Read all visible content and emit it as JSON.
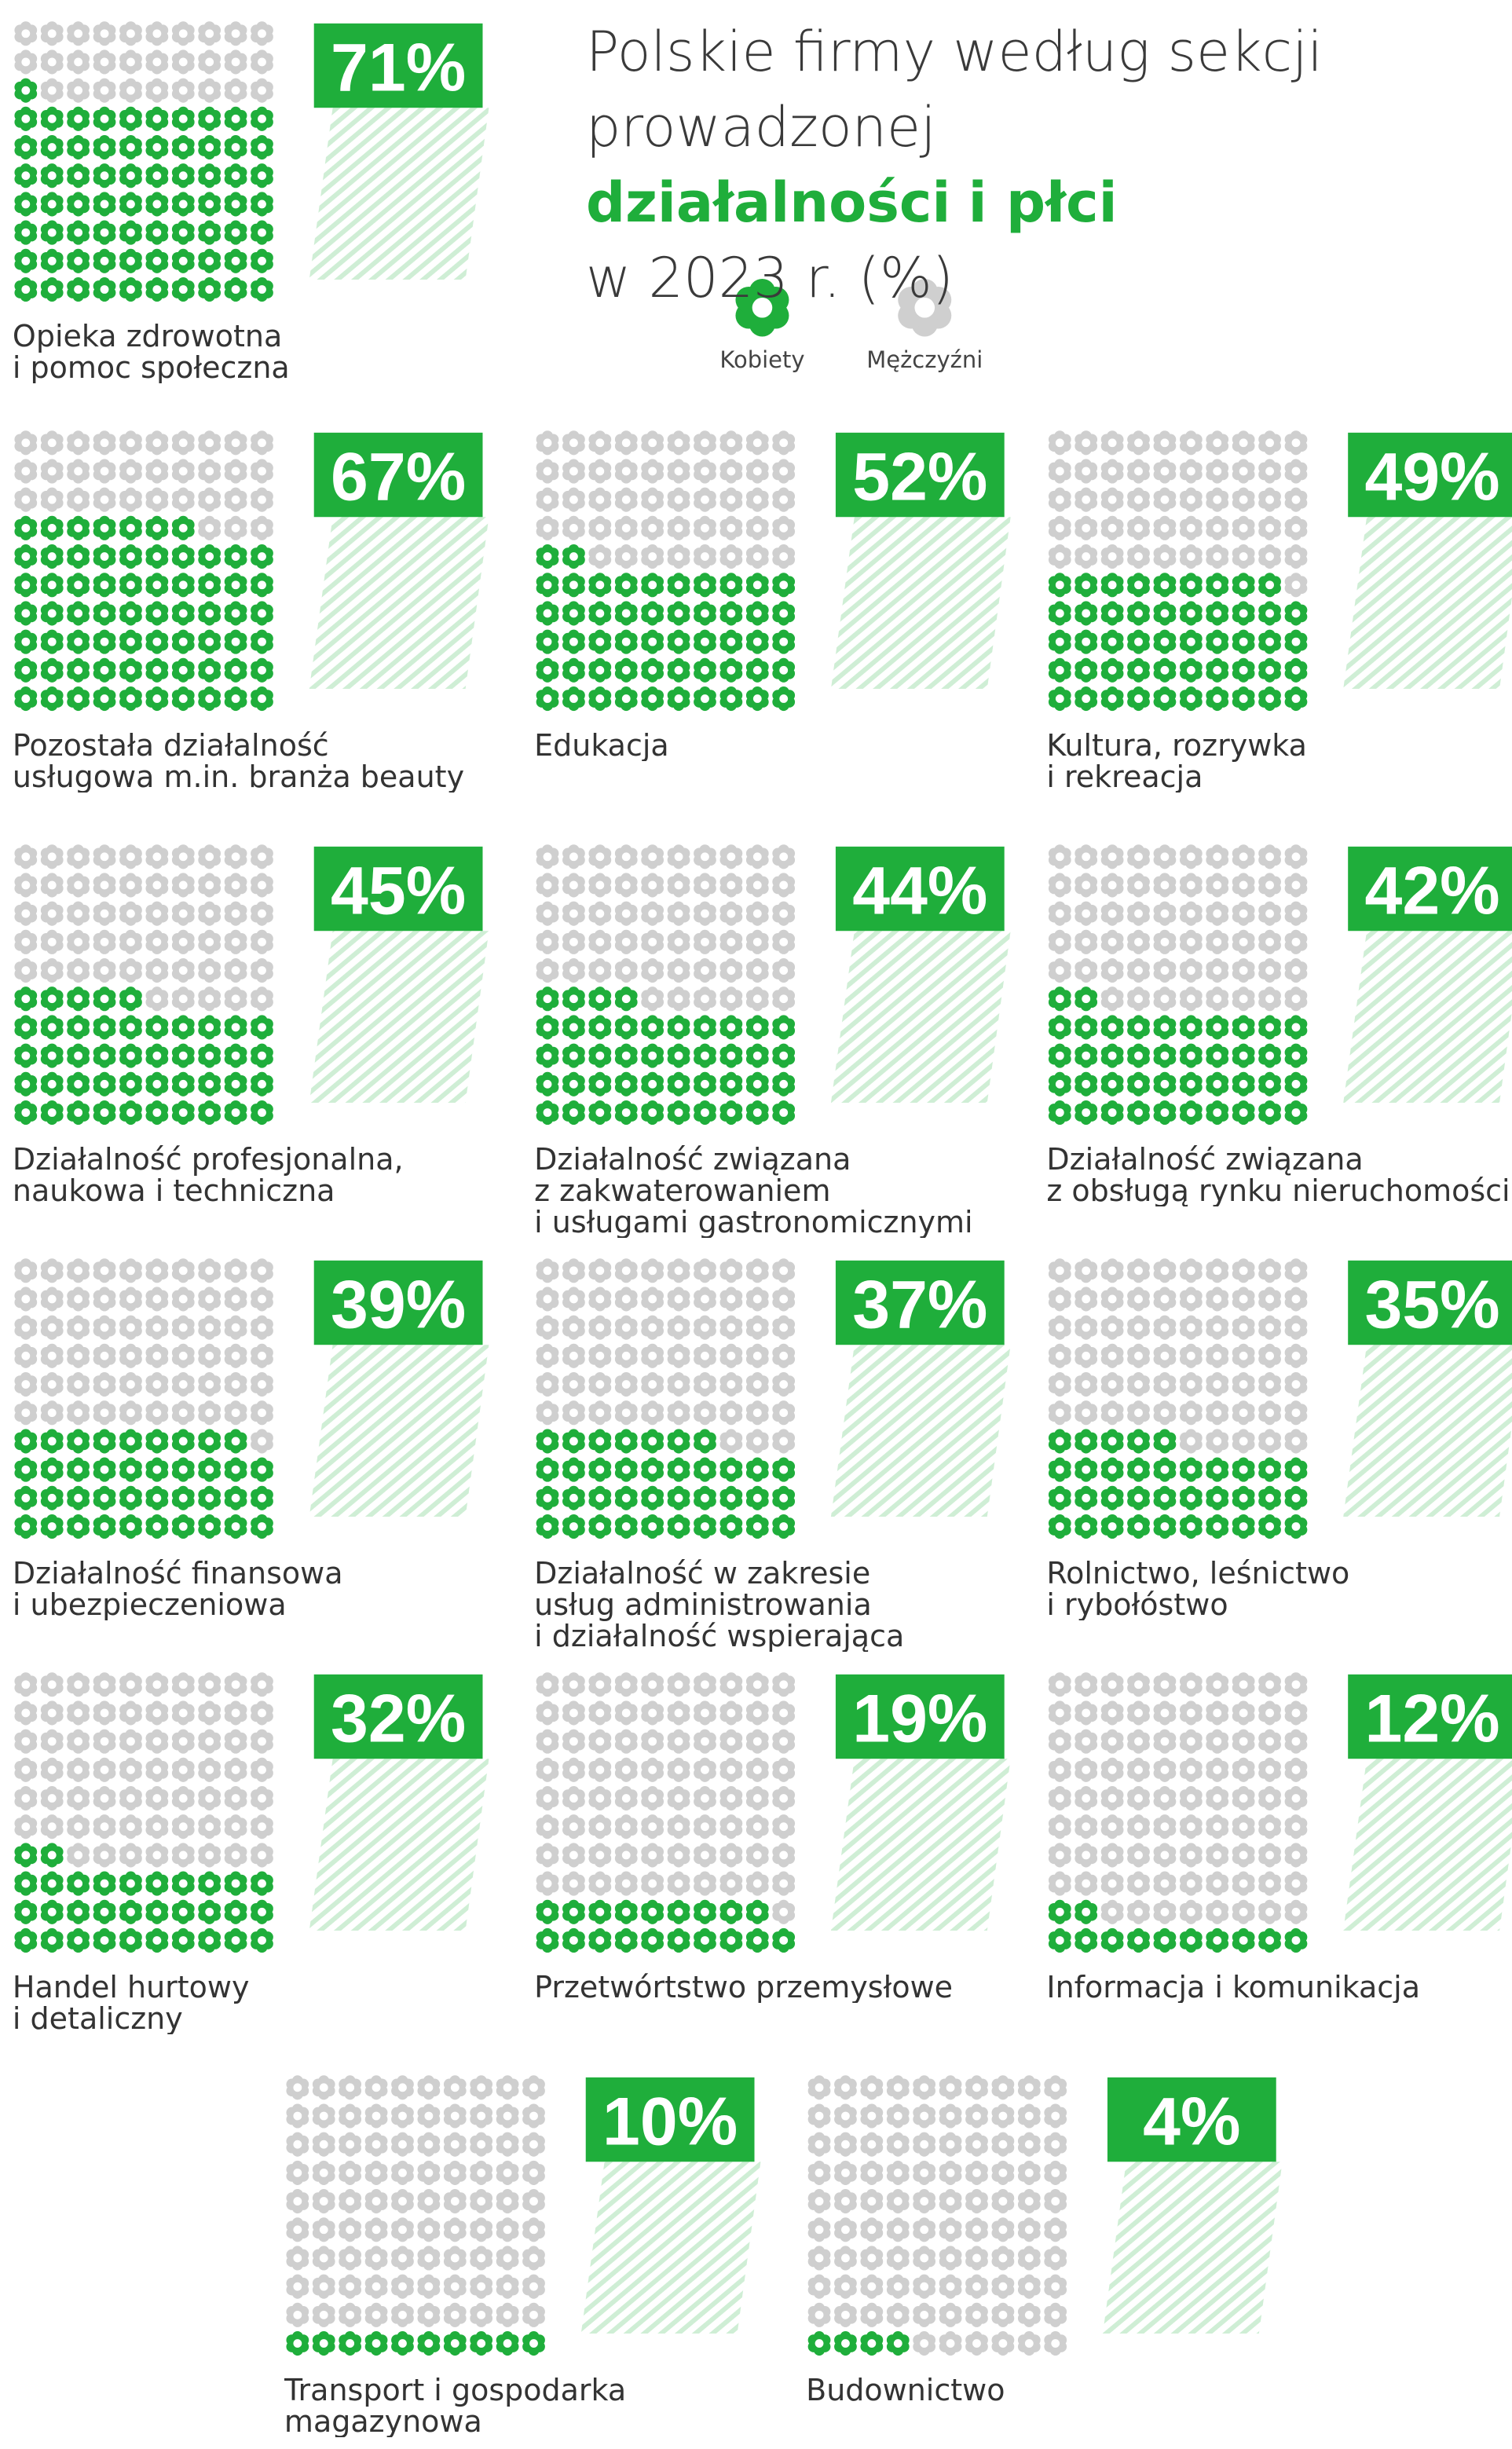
{
  "chart_data": {
    "type": "waffle",
    "title": [
      {
        "text": "Polskie firmy według sekcji",
        "highlight": false
      },
      {
        "text": "prowadzonej",
        "highlight": false
      },
      {
        "text": "działalności",
        "highlight": true
      },
      {
        "text": "i płci",
        "highlight": true
      },
      {
        "text": "w 2023 r. (%)",
        "highlight": false
      }
    ],
    "series": [
      {
        "name": "Kobiety",
        "color": "#1fae3b"
      },
      {
        "name": "Mężczyźni",
        "color": "#cfcfcf"
      }
    ],
    "total": 100,
    "categories": [
      "Opieka zdrowotna\ni pomoc społeczna",
      "Pozostała działalność\nusługowa m.in. branża beauty",
      "Edukacja",
      "Kultura, rozrywka\ni rekreacja",
      "Działalność profesjonalna,\nnaukowa i techniczna",
      "Działalność związana\nz zakwaterowaniem\ni usługami gastronomicznymi",
      "Działalność związana\nz obsługą rynku nieruchomości",
      "Działalność finansowa\ni ubezpieczeniowa",
      "Działalność w zakresie\nusług administrowania\ni działalność wspierająca",
      "Rolnictwo, leśnictwo\ni rybołóstwo",
      "Handel hurtowy\ni detaliczny",
      "Przetwórtstwo przemysłowe",
      "Informacja i komunikacja",
      "Transport i gospodarka\nmagazynowa",
      "Budownictwo"
    ],
    "values": [
      71,
      67,
      52,
      49,
      45,
      44,
      42,
      39,
      37,
      35,
      32,
      19,
      12,
      10,
      4
    ],
    "value_labels": [
      "71%",
      "67%",
      "52%",
      "49%",
      "45%",
      "44%",
      "42%",
      "39%",
      "37%",
      "35%",
      "32%",
      "19%",
      "12%",
      "10%",
      "4%"
    ]
  }
}
